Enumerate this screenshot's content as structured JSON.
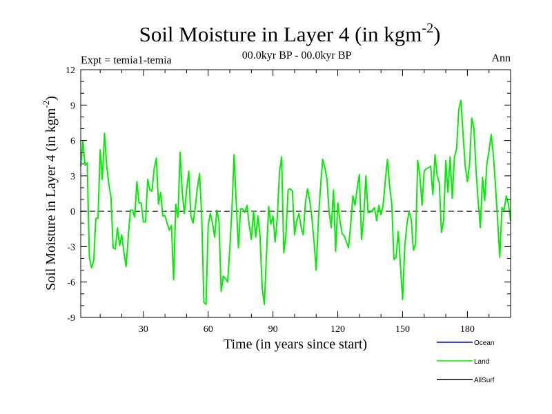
{
  "chart_data": {
    "type": "line",
    "title": "Soil Moisture in Layer 4 (in kgm",
    "title_sup": "-2",
    "title_end": ")",
    "subtitle": "00.0kyr BP - 00.0kyr BP",
    "expt_label": "Expt = temia1-temia",
    "season": "Ann",
    "xlabel": "Time (in years since start)",
    "ylabel": "Soil Moisture in Layer 4 (in kgm",
    "ylabel_sup": "-2",
    "ylabel_end": ")",
    "xlim": [
      1,
      200
    ],
    "ylim": [
      -9,
      12
    ],
    "xticks": [
      30,
      60,
      90,
      120,
      150,
      180
    ],
    "yticks": [
      -9,
      -6,
      -3,
      0,
      3,
      6,
      9,
      12
    ],
    "zero_line": true,
    "legend": [
      {
        "name": "Ocean",
        "color": "#0000ff"
      },
      {
        "name": "Land",
        "color": "#00ee00"
      },
      {
        "name": "AllSurf",
        "color": "#000000"
      }
    ],
    "series": [
      {
        "name": "Land",
        "color": "#00ee00",
        "x_start": 1,
        "values": [
          3.8,
          6.0,
          3.9,
          4.1,
          -3.9,
          -4.8,
          -4.2,
          -0.6,
          -0.6,
          5.2,
          2.7,
          6.6,
          3.9,
          2.3,
          1.2,
          -3.1,
          -3.2,
          -1.4,
          -2.9,
          -2.0,
          -3.5,
          -4.7,
          -2.2,
          0.1,
          0.1,
          -0.5,
          2.5,
          0.7,
          0.7,
          -0.9,
          -0.9,
          2.7,
          1.8,
          1.7,
          3.6,
          4.5,
          0.6,
          1.6,
          -0.4,
          -0.4,
          -1.0,
          -1.6,
          -1.2,
          -5.8,
          0.6,
          -0.5,
          5.0,
          1.6,
          -0.2,
          1.8,
          3.4,
          -0.4,
          -1.0,
          0.3,
          2.0,
          3.2,
          -0.4,
          -7.7,
          -7.9,
          -1.2,
          -0.2,
          -1.0,
          -2.2,
          0.1,
          -0.8,
          -6.8,
          -5.5,
          -5.7,
          -6.0,
          -3.2,
          0.2,
          4.8,
          0.7,
          -3.1,
          0.2,
          0.2,
          -0.1,
          0.5,
          -1.2,
          -2.4,
          0.0,
          -2.2,
          -0.4,
          -2.1,
          -6.5,
          -7.9,
          -3.6,
          0.4,
          -1.1,
          -0.4,
          -2.6,
          -0.5,
          3.3,
          4.6,
          -3.5,
          -2.0,
          1.8,
          1.9,
          1.7,
          -2.0,
          -0.8,
          -0.2,
          -1.3,
          -2.0,
          0.7,
          1.9,
          0.9,
          -0.5,
          -2.6,
          -5.0,
          -0.8,
          2.0,
          4.4,
          3.7,
          2.7,
          -0.1,
          -1.4,
          1.8,
          -3.4,
          0.7,
          -0.8,
          -1.9,
          -2.1,
          -2.6,
          -3.1,
          -1.0,
          1.3,
          0.5,
          2.0,
          3.1,
          -2.4,
          -0.5,
          3.0,
          -0.1,
          -0.1,
          0.1,
          0.3,
          -0.8,
          0.5,
          -0.3,
          0.5,
          2.6,
          4.4,
          2.1,
          0.6,
          -4.1,
          -3.9,
          -1.7,
          -4.6,
          -7.5,
          -3.0,
          -1.1,
          0.0,
          -0.7,
          -3.3,
          -2.8,
          4.3,
          3.0,
          0.5,
          3.4,
          3.6,
          3.7,
          3.8,
          1.4,
          4.8,
          3.0,
          2.4,
          -1.8,
          -0.8,
          4.3,
          1.6,
          4.6,
          1.1,
          4.6,
          5.3,
          8.6,
          9.4,
          6.5,
          3.8,
          2.5,
          4.0,
          7.9,
          7.1,
          3.5,
          0.8,
          -1.4,
          2.9,
          0.9,
          4.0,
          5.1,
          6.5,
          4.8,
          2.2,
          -0.8,
          -3.9,
          0.3,
          0.1,
          1.3,
          0.6,
          -0.8
        ]
      }
    ]
  }
}
